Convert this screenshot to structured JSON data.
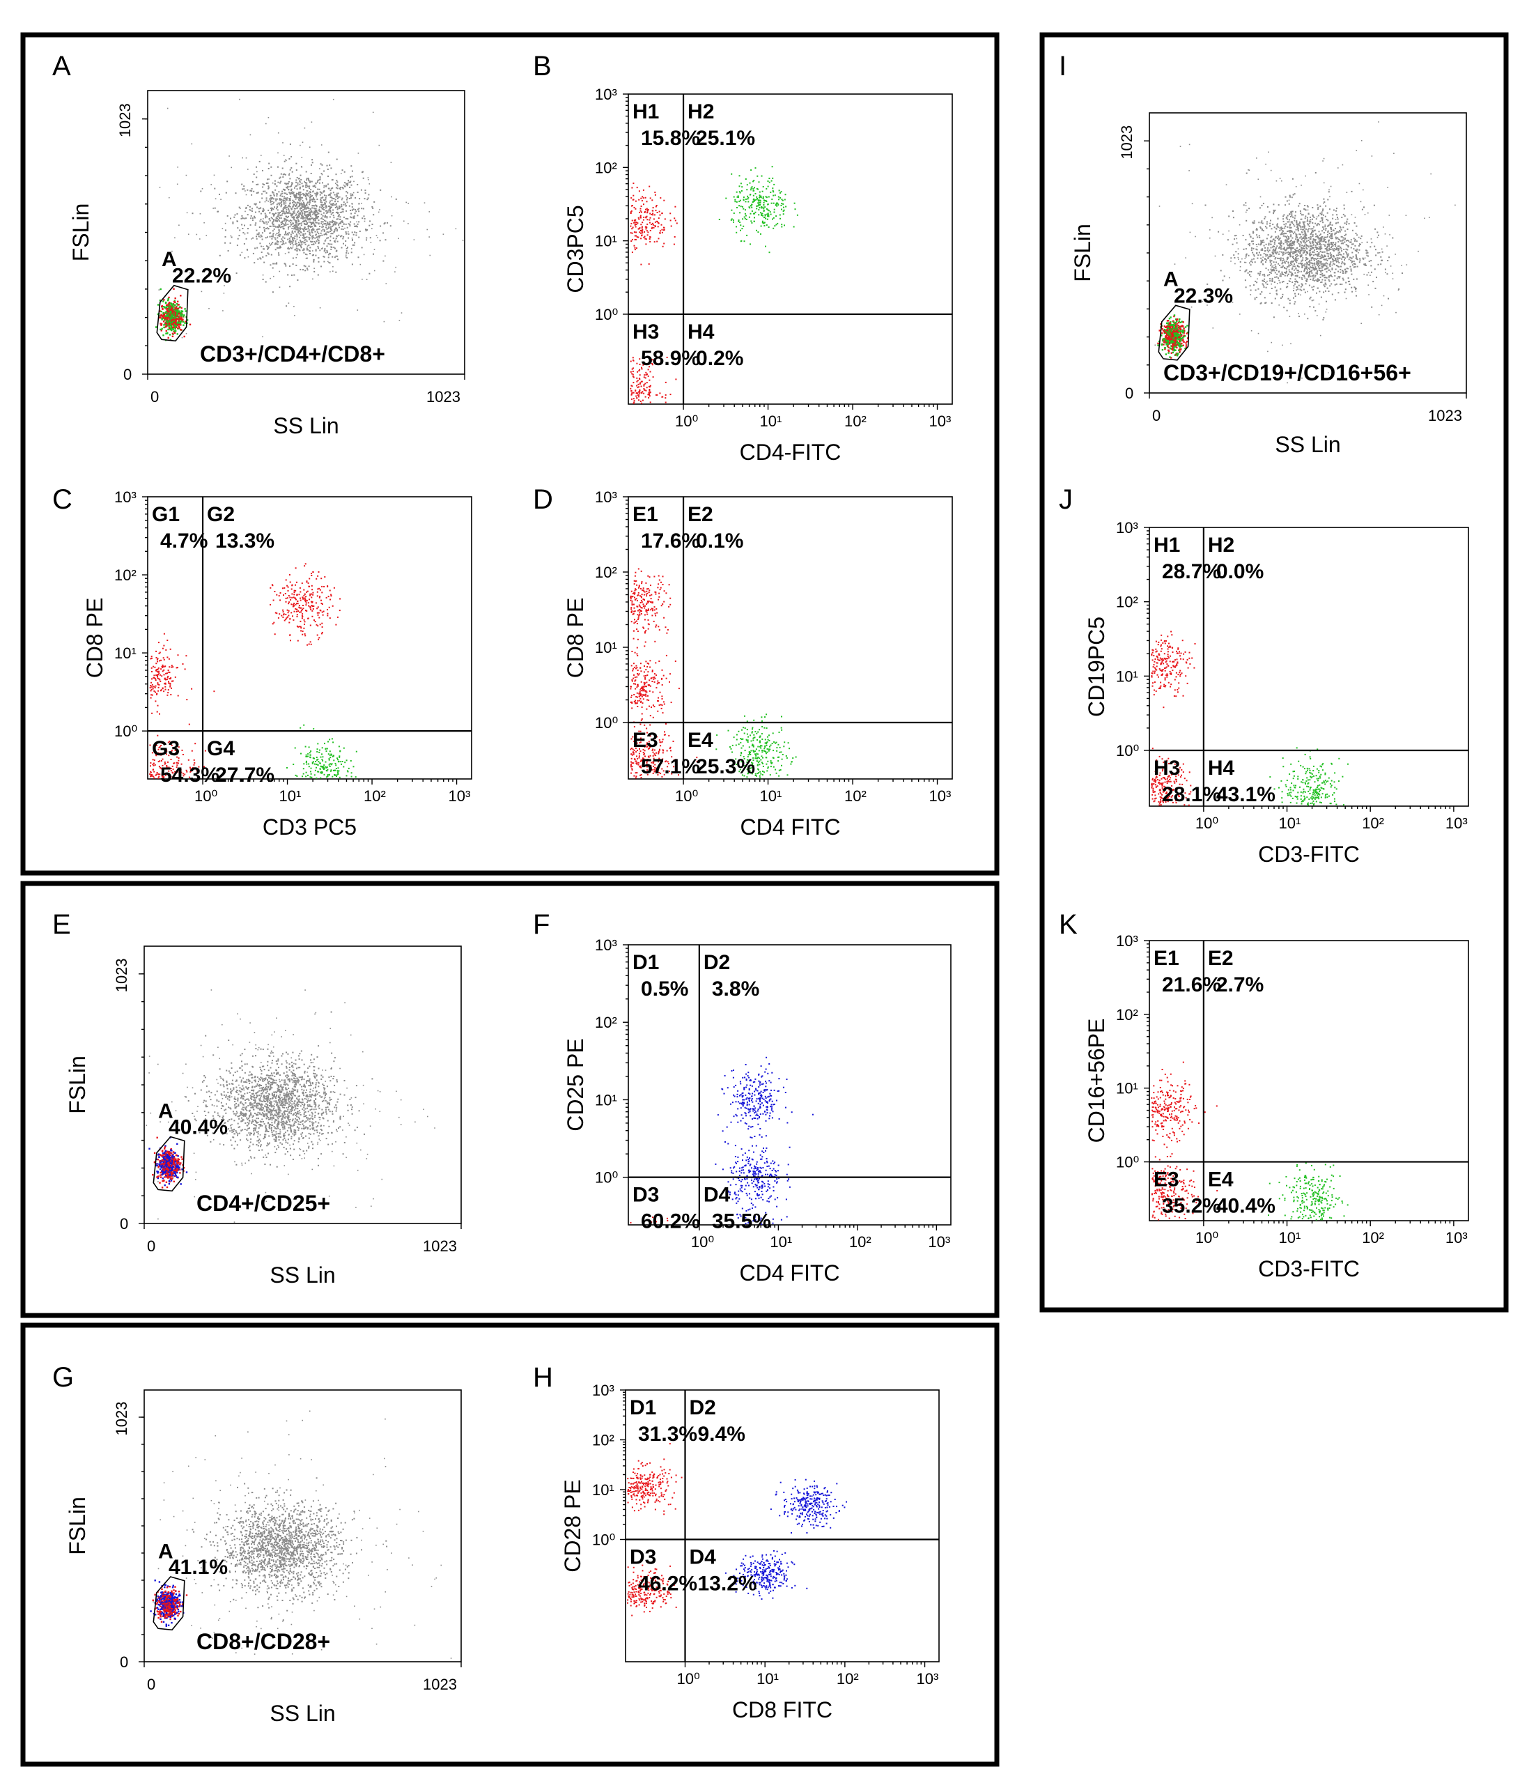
{
  "colors": {
    "gray": "#8a8a8a",
    "red": "#e8161b",
    "green": "#22c022",
    "blue": "#1515d8",
    "frame": "#000000"
  },
  "chart_data": [
    {
      "id": "A",
      "type": "scatter",
      "kind": "ss",
      "panel_letter": "A",
      "xlabel": "SS Lin",
      "ylabel": "FSLin",
      "x_ticks": [
        "0",
        "1023"
      ],
      "y_ticks": [
        "0",
        "1023"
      ],
      "xlim": [
        0,
        1023
      ],
      "ylim": [
        0,
        1023
      ],
      "gate": {
        "name": "A",
        "percent": "22.2%"
      },
      "plot_label": "CD3+/CD4+/CD8+",
      "main_cluster": {
        "x": 500,
        "y": 570
      },
      "gated_colors": [
        "red",
        "green"
      ]
    },
    {
      "id": "B",
      "type": "scatter",
      "kind": "quad",
      "panel_letter": "B",
      "xlabel": "CD4-FITC",
      "ylabel": "CD3PC5",
      "x_ticks": [
        "10⁰",
        "10¹",
        "10²",
        "10³"
      ],
      "y_ticks": [
        "10⁰",
        "10¹",
        "10²",
        "10³"
      ],
      "quadrants": [
        {
          "name": "H1",
          "percent": "15.8%"
        },
        {
          "name": "H2",
          "percent": "25.1%"
        },
        {
          "name": "H3",
          "percent": "58.9%"
        },
        {
          "name": "H4",
          "percent": "0.2%"
        }
      ],
      "clusters": [
        {
          "color": "red",
          "x": 0.3,
          "y": 20
        },
        {
          "color": "green",
          "x": 8,
          "y": 30
        },
        {
          "color": "red",
          "x": 0.25,
          "y": 0.1
        }
      ]
    },
    {
      "id": "C",
      "type": "scatter",
      "kind": "quad",
      "panel_letter": "C",
      "xlabel": "CD3 PC5",
      "ylabel": "CD8 PE",
      "x_ticks": [
        "10⁰",
        "10¹",
        "10²",
        "10³"
      ],
      "y_ticks": [
        "10⁰",
        "10¹",
        "10²",
        "10³"
      ],
      "quadrants": [
        {
          "name": "G1",
          "percent": "4.7%"
        },
        {
          "name": "G2",
          "percent": "13.3%"
        },
        {
          "name": "G3",
          "percent": "54.3%"
        },
        {
          "name": "G4",
          "percent": "27.7%"
        }
      ],
      "clusters": [
        {
          "color": "red",
          "x": 0.25,
          "y": 5
        },
        {
          "color": "red",
          "x": 15,
          "y": 40
        },
        {
          "color": "red",
          "x": 0.4,
          "y": 0.3
        },
        {
          "color": "green",
          "x": 25,
          "y": 0.3
        }
      ]
    },
    {
      "id": "D",
      "type": "scatter",
      "kind": "quad",
      "panel_letter": "D",
      "xlabel": "CD4 FITC",
      "ylabel": "CD8 PE",
      "x_ticks": [
        "10⁰",
        "10¹",
        "10²",
        "10³"
      ],
      "y_ticks": [
        "10⁰",
        "10¹",
        "10²",
        "10³"
      ],
      "quadrants": [
        {
          "name": "E1",
          "percent": "17.6%"
        },
        {
          "name": "E2",
          "percent": "0.1%"
        },
        {
          "name": "E3",
          "percent": "57.1%"
        },
        {
          "name": "E4",
          "percent": "25.3%"
        }
      ],
      "clusters": [
        {
          "color": "red",
          "x": 0.3,
          "y": 40
        },
        {
          "color": "red",
          "x": 0.3,
          "y": 3
        },
        {
          "color": "red",
          "x": 0.35,
          "y": 0.3
        },
        {
          "color": "green",
          "x": 8,
          "y": 0.4
        }
      ]
    },
    {
      "id": "E",
      "type": "scatter",
      "kind": "ss",
      "panel_letter": "E",
      "xlabel": "SS Lin",
      "ylabel": "FSLin",
      "x_ticks": [
        "0",
        "1023"
      ],
      "y_ticks": [
        "0",
        "1023"
      ],
      "xlim": [
        0,
        1023
      ],
      "ylim": [
        0,
        1023
      ],
      "gate": {
        "name": "A",
        "percent": "40.4%"
      },
      "plot_label": "CD4+/CD25+",
      "main_cluster": {
        "x": 420,
        "y": 440
      },
      "gated_colors": [
        "red",
        "blue"
      ]
    },
    {
      "id": "F",
      "type": "scatter",
      "kind": "quad",
      "panel_letter": "F",
      "xlabel": "CD4 FITC",
      "ylabel": "CD25 PE",
      "x_ticks": [
        "10⁰",
        "10¹",
        "10²",
        "10³"
      ],
      "y_ticks": [
        "10⁰",
        "10¹",
        "10²",
        "10³"
      ],
      "quadrants": [
        {
          "name": "D1",
          "percent": "0.5%"
        },
        {
          "name": "D2",
          "percent": "3.8%"
        },
        {
          "name": "D3",
          "percent": "60.2%"
        },
        {
          "name": "D4",
          "percent": "35.5%"
        }
      ],
      "clusters": [
        {
          "color": "red",
          "x": 0.3,
          "y": 0.1
        },
        {
          "color": "blue",
          "x": 5,
          "y": 1
        },
        {
          "color": "blue",
          "x": 5,
          "y": 0.12
        },
        {
          "color": "blue",
          "x": 5,
          "y": 10
        }
      ]
    },
    {
      "id": "G",
      "type": "scatter",
      "kind": "ss",
      "panel_letter": "G",
      "xlabel": "SS Lin",
      "ylabel": "FSLin",
      "x_ticks": [
        "0",
        "1023"
      ],
      "y_ticks": [
        "0",
        "1023"
      ],
      "xlim": [
        0,
        1023
      ],
      "ylim": [
        0,
        1023
      ],
      "gate": {
        "name": "A",
        "percent": "41.1%"
      },
      "plot_label": "CD8+/CD28+",
      "main_cluster": {
        "x": 440,
        "y": 430
      },
      "gated_colors": [
        "red",
        "blue"
      ]
    },
    {
      "id": "H",
      "type": "scatter",
      "kind": "quad",
      "panel_letter": "H",
      "xlabel": "CD8 FITC",
      "ylabel": "CD28 PE",
      "x_ticks": [
        "10⁰",
        "10¹",
        "10²",
        "10³"
      ],
      "y_ticks": [
        "10⁰",
        "10¹",
        "10²",
        "10³"
      ],
      "quadrants": [
        {
          "name": "D1",
          "percent": "31.3%"
        },
        {
          "name": "D2",
          "percent": "9.4%"
        },
        {
          "name": "D3",
          "percent": "46.2%"
        },
        {
          "name": "D4",
          "percent": "13.2%"
        }
      ],
      "clusters": [
        {
          "color": "red",
          "x": 0.3,
          "y": 12
        },
        {
          "color": "blue",
          "x": 35,
          "y": 5
        },
        {
          "color": "red",
          "x": 0.3,
          "y": 0.1
        },
        {
          "color": "blue",
          "x": 10,
          "y": 0.2
        }
      ]
    },
    {
      "id": "I",
      "type": "scatter",
      "kind": "ss",
      "panel_letter": "I",
      "xlabel": "SS Lin",
      "ylabel": "FSLin",
      "x_ticks": [
        "0",
        "1023"
      ],
      "y_ticks": [
        "0",
        "1023"
      ],
      "xlim": [
        0,
        1023
      ],
      "ylim": [
        0,
        1023
      ],
      "gate": {
        "name": "A",
        "percent": "22.3%"
      },
      "plot_label": "CD3+/CD19+/CD16+56+",
      "main_cluster": {
        "x": 500,
        "y": 520
      },
      "gated_colors": [
        "red",
        "green"
      ]
    },
    {
      "id": "J",
      "type": "scatter",
      "kind": "quad",
      "panel_letter": "J",
      "xlabel": "CD3-FITC",
      "ylabel": "CD19PC5",
      "x_ticks": [
        "10⁰",
        "10¹",
        "10²",
        "10³"
      ],
      "y_ticks": [
        "10⁰",
        "10¹",
        "10²",
        "10³"
      ],
      "quadrants": [
        {
          "name": "H1",
          "percent": "28.7%"
        },
        {
          "name": "H2",
          "percent": "0.0%"
        },
        {
          "name": "H3",
          "percent": "28.1%"
        },
        {
          "name": "H4",
          "percent": "43.1%"
        }
      ],
      "clusters": [
        {
          "color": "red",
          "x": 0.3,
          "y": 15
        },
        {
          "color": "red",
          "x": 0.3,
          "y": 0.3
        },
        {
          "color": "green",
          "x": 20,
          "y": 0.3
        }
      ]
    },
    {
      "id": "K",
      "type": "scatter",
      "kind": "quad",
      "panel_letter": "K",
      "xlabel": "CD3-FITC",
      "ylabel": "CD16+56PE",
      "x_ticks": [
        "10⁰",
        "10¹",
        "10²",
        "10³"
      ],
      "y_ticks": [
        "10⁰",
        "10¹",
        "10²",
        "10³"
      ],
      "quadrants": [
        {
          "name": "E1",
          "percent": "21.6%"
        },
        {
          "name": "E2",
          "percent": "2.7%"
        },
        {
          "name": "E3",
          "percent": "35.2%"
        },
        {
          "name": "E4",
          "percent": "40.4%"
        }
      ],
      "clusters": [
        {
          "color": "red",
          "x": 0.35,
          "y": 5
        },
        {
          "color": "red",
          "x": 0.35,
          "y": 0.4
        },
        {
          "color": "green",
          "x": 20,
          "y": 0.3
        }
      ]
    }
  ]
}
